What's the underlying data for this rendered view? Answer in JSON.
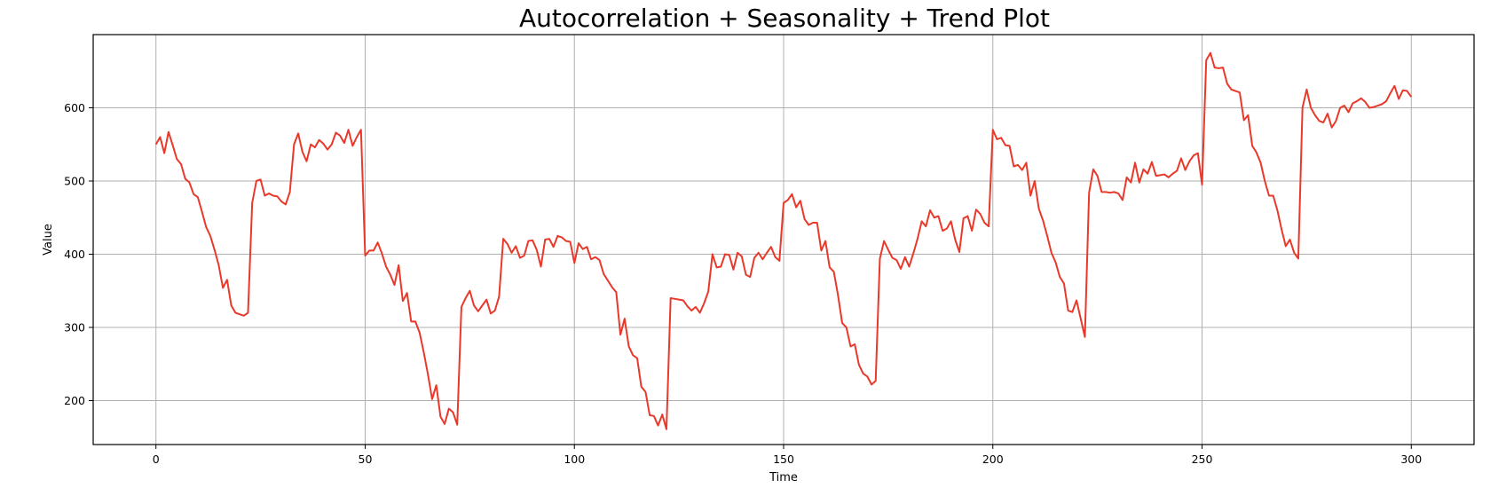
{
  "chart_data": {
    "type": "line",
    "title": "Autocorrelation + Seasonality + Trend Plot",
    "xlabel": "Time",
    "ylabel": "Value",
    "xlim": [
      -15,
      315
    ],
    "ylim": [
      140,
      700
    ],
    "x_ticks": [
      0,
      50,
      100,
      150,
      200,
      250,
      300
    ],
    "y_ticks": [
      200,
      300,
      400,
      500,
      600
    ],
    "grid": true,
    "line_color": "#e8392b",
    "series": [
      {
        "x_start": 0,
        "x_step": 1,
        "values": [
          550,
          560,
          538,
          567,
          549,
          530,
          523,
          503,
          498,
          482,
          478,
          458,
          437,
          425,
          406,
          385,
          354,
          365,
          330,
          320,
          318,
          316,
          320,
          470,
          500,
          502,
          480,
          483,
          480,
          479,
          472,
          468,
          485,
          550,
          565,
          540,
          527,
          550,
          546,
          556,
          551,
          543,
          550,
          566,
          562,
          552,
          570,
          548,
          560,
          570,
          398,
          405,
          405,
          416,
          401,
          383,
          372,
          358,
          385,
          336,
          347,
          308,
          308,
          293,
          266,
          236,
          202,
          221,
          178,
          168,
          189,
          184,
          167,
          328,
          340,
          350,
          330,
          322,
          330,
          338,
          319,
          323,
          342,
          421,
          414,
          402,
          411,
          395,
          398,
          418,
          419,
          406,
          383,
          420,
          421,
          410,
          425,
          423,
          418,
          417,
          388,
          415,
          407,
          410,
          393,
          396,
          392,
          373,
          364,
          355,
          348,
          290,
          312,
          274,
          262,
          258,
          219,
          212,
          180,
          179,
          166,
          181,
          161,
          340,
          339,
          338,
          337,
          329,
          323,
          328,
          320,
          333,
          349,
          400,
          382,
          383,
          400,
          399,
          379,
          402,
          397,
          372,
          369,
          395,
          402,
          393,
          402,
          410,
          396,
          391,
          470,
          474,
          482,
          464,
          473,
          448,
          440,
          443,
          443,
          405,
          418,
          382,
          376,
          344,
          306,
          300,
          274,
          277,
          249,
          237,
          233,
          222,
          227,
          394,
          418,
          406,
          395,
          392,
          380,
          396,
          383,
          401,
          421,
          445,
          438,
          460,
          450,
          452,
          432,
          435,
          445,
          420,
          403,
          449,
          452,
          432,
          461,
          455,
          443,
          438,
          570,
          557,
          559,
          549,
          548,
          520,
          522,
          515,
          525,
          480,
          500,
          462,
          446,
          425,
          402,
          389,
          369,
          360,
          323,
          321,
          337,
          312,
          287,
          484,
          516,
          507,
          485,
          485,
          484,
          485,
          483,
          474,
          505,
          498,
          525,
          498,
          516,
          510,
          526,
          507,
          508,
          509,
          505,
          510,
          514,
          531,
          515,
          527,
          535,
          538,
          495,
          665,
          675,
          655,
          654,
          655,
          633,
          625,
          623,
          621,
          583,
          590,
          548,
          539,
          525,
          500,
          480,
          480,
          460,
          434,
          411,
          420,
          402,
          394,
          600,
          625,
          600,
          590,
          582,
          580,
          592,
          573,
          582,
          600,
          603,
          594,
          606,
          609,
          613,
          608,
          600,
          601,
          603,
          605,
          609,
          620,
          630,
          612,
          624,
          623,
          615
        ]
      }
    ]
  }
}
